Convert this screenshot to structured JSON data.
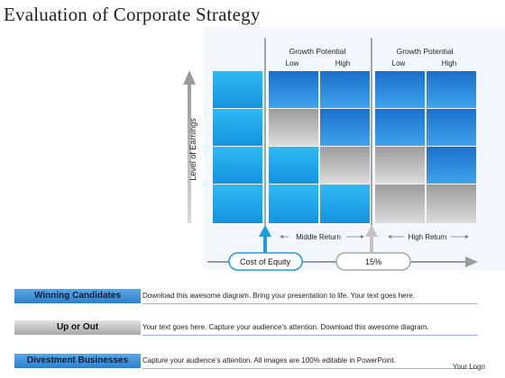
{
  "title": "Evaluation of Corporate Strategy",
  "diagram": {
    "y_axis_label": "Level of Earnings",
    "group_left": {
      "label": "Growth Potential",
      "low": "Low",
      "high": "High"
    },
    "group_right": {
      "label": "Growth Potential",
      "low": "Low",
      "high": "High"
    },
    "middle_return": "Middle Return",
    "high_return": "High Return",
    "cost_of_equity": "Cost of Equity",
    "percent": "15%",
    "colors": {
      "blue": "#2a86d6",
      "light_blue": "#2ab0ee",
      "gray": "#b4b4b4",
      "accent": "#1f9be0"
    }
  },
  "legend": [
    {
      "tag": "Winning Candidates",
      "style": "blue",
      "text": "Download this awesome diagram. Bring your presentation to life. Your text goes here."
    },
    {
      "tag": "Up or Out",
      "style": "gray",
      "text": "Your text goes here. Capture your audience’s attention. Download this awesome diagram."
    },
    {
      "tag": "Divestment Businesses",
      "style": "blue",
      "text": "Capture your audience’s attention. All images are 100% editable in PowerPoint."
    }
  ],
  "logo": "Your Logo"
}
